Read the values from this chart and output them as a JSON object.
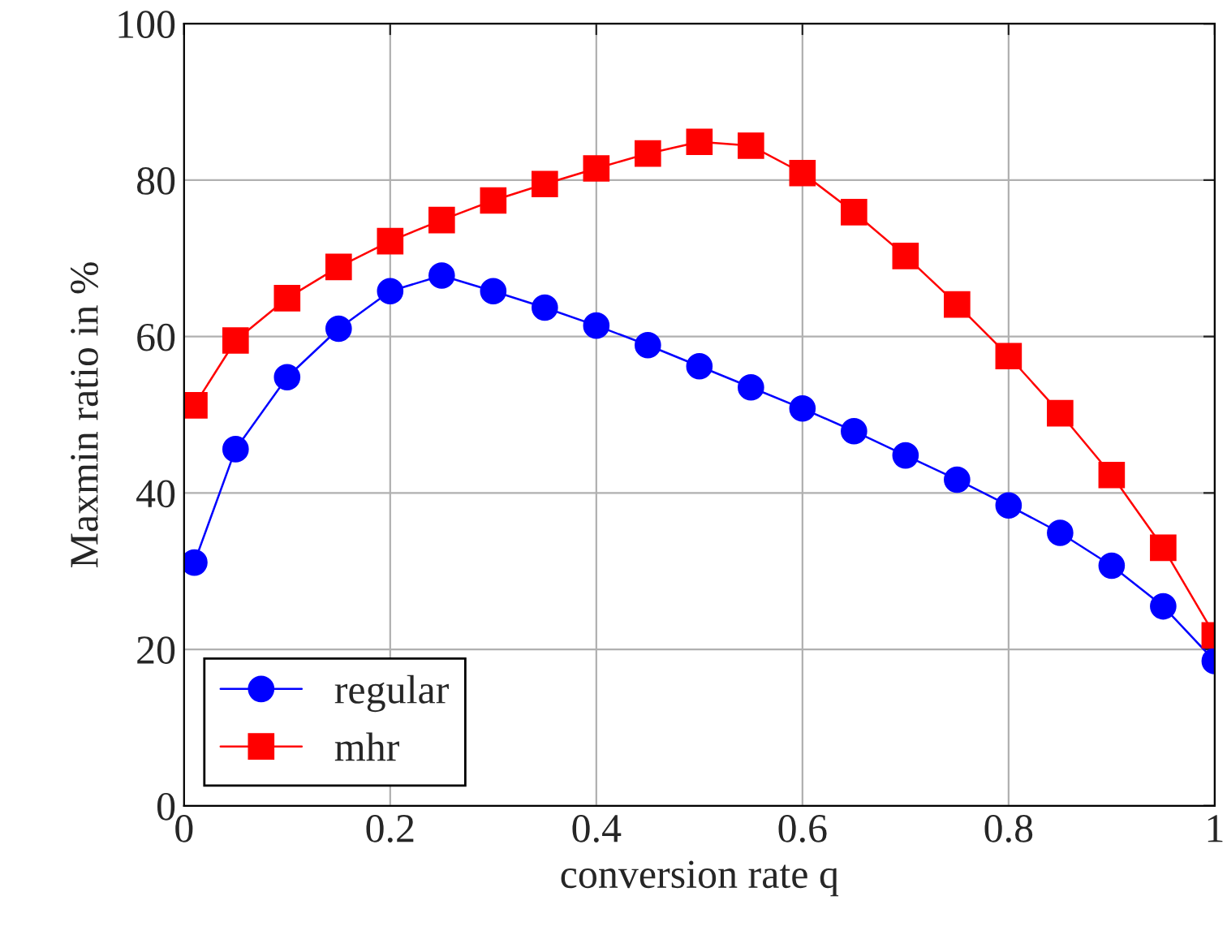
{
  "chart_data": {
    "type": "line",
    "xlabel": "conversion rate q",
    "ylabel": "Maxmin ratio in %",
    "xlim": [
      0,
      1
    ],
    "ylim": [
      0,
      100
    ],
    "xticks": [
      0,
      0.2,
      0.4,
      0.6,
      0.8,
      1
    ],
    "yticks": [
      0,
      20,
      40,
      60,
      80,
      100
    ],
    "grid": true,
    "legend": "bottom left",
    "x": [
      0.01,
      0.05,
      0.1,
      0.15,
      0.2,
      0.25,
      0.3,
      0.35,
      0.4,
      0.45,
      0.5,
      0.55,
      0.6,
      0.65,
      0.7,
      0.75,
      0.8,
      0.85,
      0.9,
      0.95,
      1.0
    ],
    "series": [
      {
        "name": "regular",
        "color": "#0000ff",
        "marker": "circle",
        "values": [
          31.1,
          45.6,
          54.8,
          61.0,
          65.8,
          67.8,
          65.8,
          63.7,
          61.4,
          58.9,
          56.2,
          53.5,
          50.8,
          47.9,
          44.8,
          41.7,
          38.4,
          34.9,
          30.7,
          25.5,
          18.5
        ]
      },
      {
        "name": "mhr",
        "color": "#ff0000",
        "marker": "square",
        "values": [
          51.2,
          59.5,
          64.9,
          68.9,
          72.2,
          74.9,
          77.4,
          79.5,
          81.5,
          83.4,
          84.9,
          84.4,
          80.9,
          75.9,
          70.3,
          64.1,
          57.5,
          50.2,
          42.3,
          33.0,
          21.8
        ]
      }
    ]
  }
}
